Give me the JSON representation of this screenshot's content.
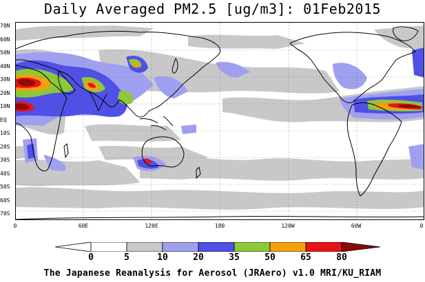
{
  "title": "Daily Averaged PM2.5 [ug/m3]: 01Feb2015",
  "footer": "The Japanese Reanalysis for Aerosol (JRAero) v1.0 MRI/KU_RIAM",
  "lat_labels": [
    "70N",
    "60N",
    "50N",
    "40N",
    "30N",
    "20N",
    "10N",
    "EQ",
    "10S",
    "20S",
    "30S",
    "40S",
    "50S",
    "60S",
    "70S"
  ],
  "lon_labels": [
    "0",
    "60E",
    "120E",
    "180",
    "120W",
    "60W",
    "0"
  ],
  "colorbar": {
    "ticks": [
      "0",
      "5",
      "10",
      "20",
      "35",
      "50",
      "65",
      "80"
    ],
    "colors": [
      "#ffffff",
      "#c8c8c8",
      "#a0a0f0",
      "#5050e6",
      "#8cc83c",
      "#f5a00f",
      "#e61414",
      "#8c0a0a"
    ]
  }
}
